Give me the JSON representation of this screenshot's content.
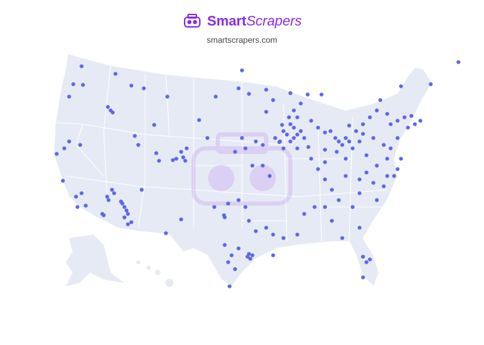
{
  "header": {
    "brand_bold": "Smart",
    "brand_italic": "Scrapers",
    "url": "smartscrapers.com"
  }
}
